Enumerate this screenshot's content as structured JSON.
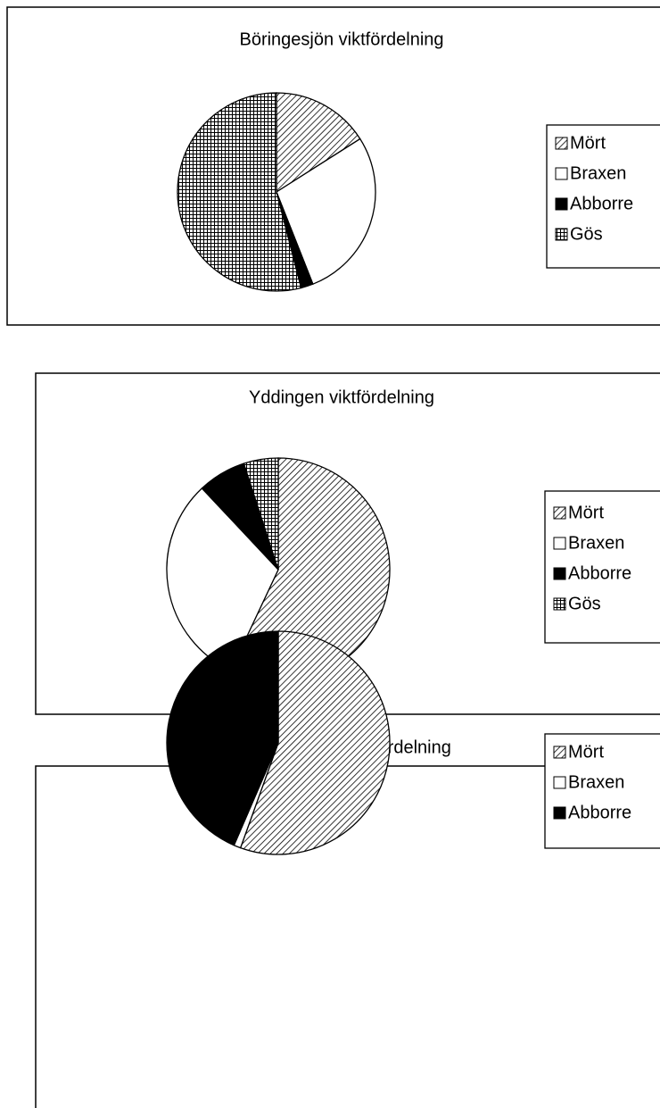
{
  "chart_data": [
    {
      "type": "pie",
      "title": "Böringesjön viktfördelning",
      "labels": [
        "Mört",
        "Braxen",
        "Abborre",
        "Gös"
      ],
      "values": [
        16,
        28,
        2,
        54
      ],
      "patterns": [
        "diagonal",
        "none",
        "solid",
        "grid"
      ]
    },
    {
      "type": "pie",
      "title": "Yddingen viktfördelning",
      "labels": [
        "Mört",
        "Braxen",
        "Abborre",
        "Gös"
      ],
      "values": [
        57,
        31,
        7,
        5
      ],
      "patterns": [
        "diagonal",
        "none",
        "solid",
        "grid"
      ]
    },
    {
      "type": "pie",
      "title": "Havgårdssjön viktfördelning",
      "labels": [
        "Mört",
        "Braxen",
        "Abborre"
      ],
      "values": [
        55.5,
        1,
        43.5
      ],
      "patterns": [
        "diagonal",
        "none",
        "solid"
      ]
    }
  ]
}
